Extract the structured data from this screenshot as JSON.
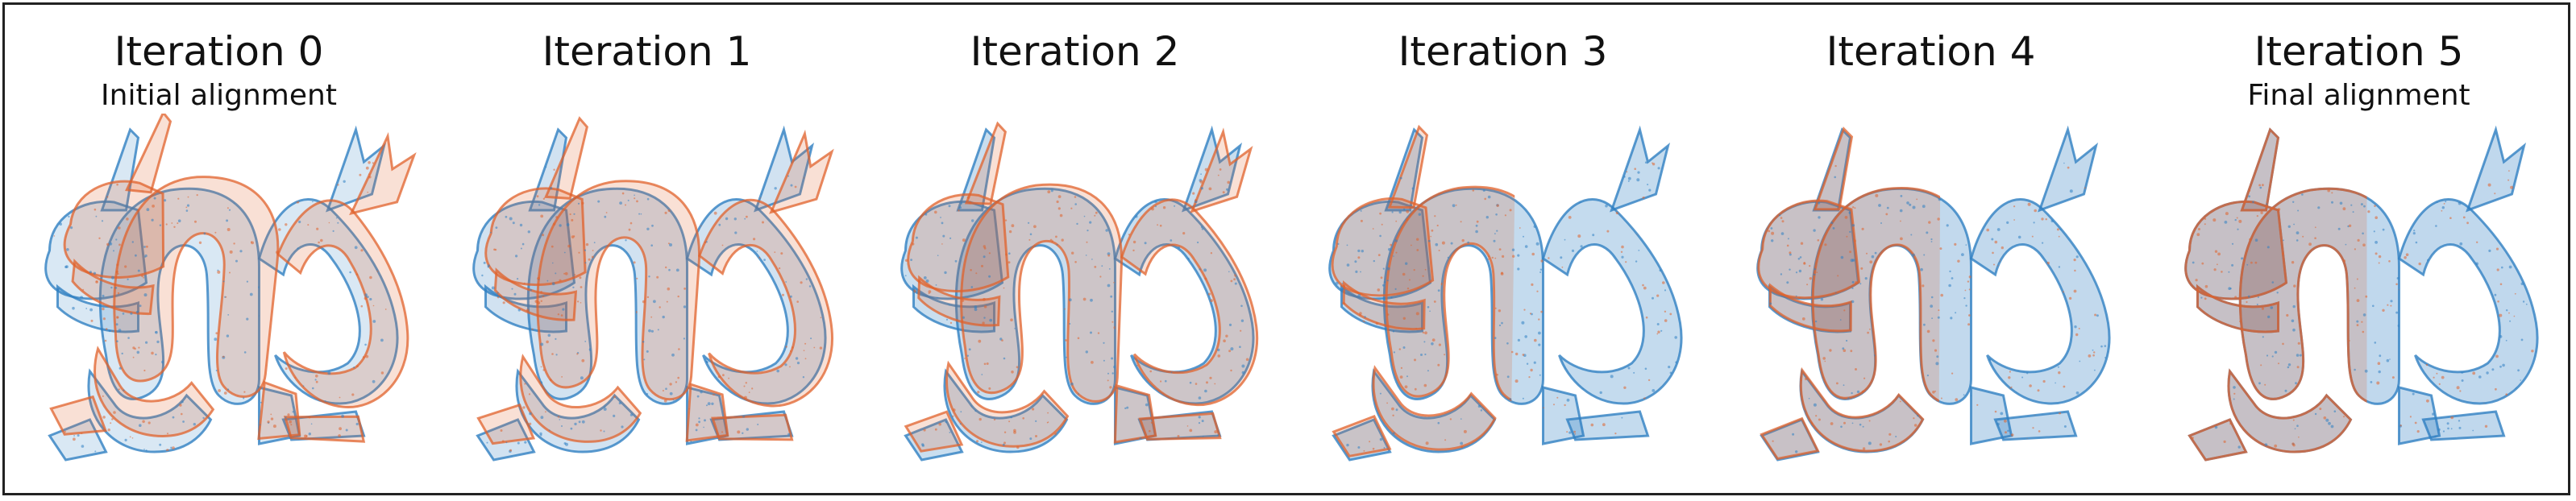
{
  "colors": {
    "source": "#e0622b",
    "target": "#2f7fc2"
  },
  "panels": [
    {
      "title": "Iteration 0",
      "subtitle": "Initial alignment",
      "alignment": 0.0
    },
    {
      "title": "Iteration 1",
      "subtitle": "",
      "alignment": 0.35
    },
    {
      "title": "Iteration 2",
      "subtitle": "",
      "alignment": 0.65
    },
    {
      "title": "Iteration 3",
      "subtitle": "",
      "alignment": 0.85
    },
    {
      "title": "Iteration 4",
      "subtitle": "",
      "alignment": 0.95
    },
    {
      "title": "Iteration 5",
      "subtitle": "Final alignment",
      "alignment": 1.0
    }
  ]
}
